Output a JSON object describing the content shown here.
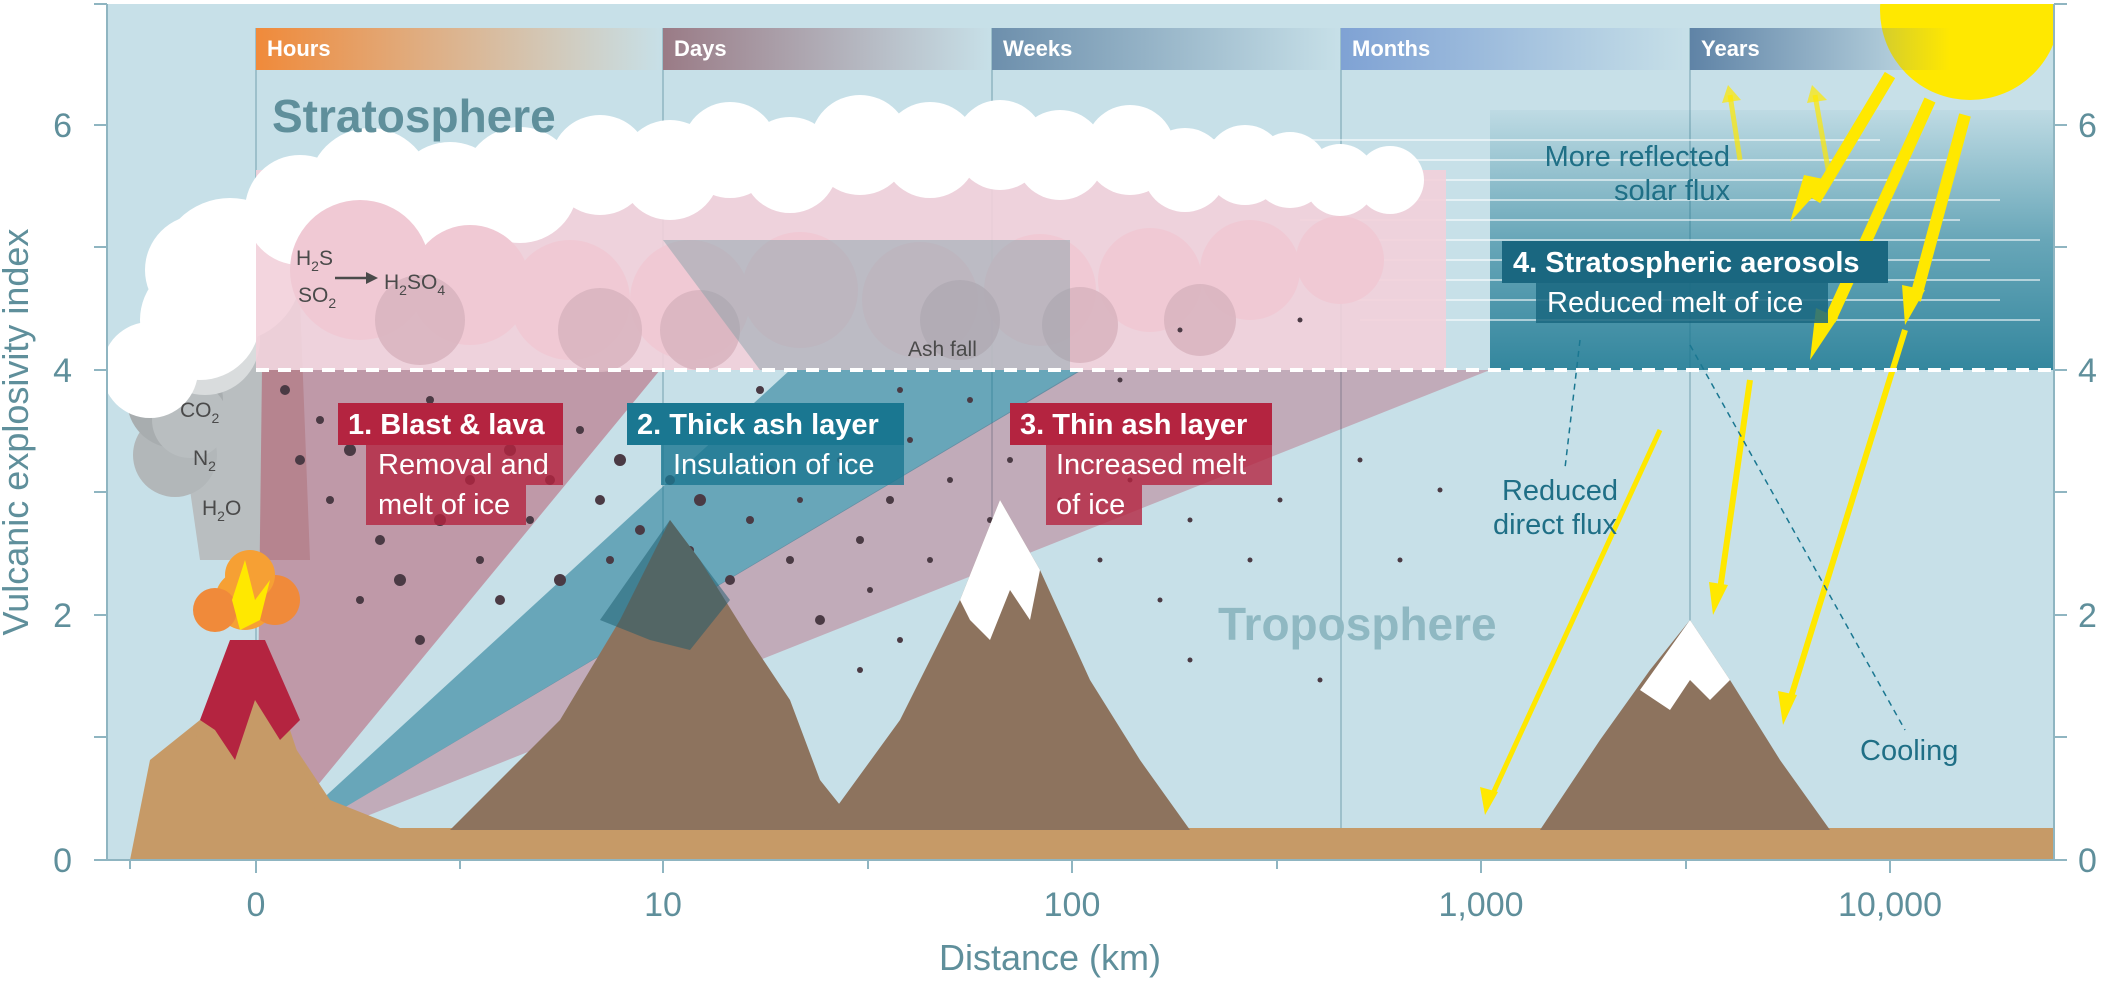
{
  "axes": {
    "ylabel": "Vulcanic explosivity index",
    "xlabel": "Distance (km)",
    "y_ticks_left": [
      "0",
      "2",
      "4",
      "6"
    ],
    "y_ticks_right": [
      "0",
      "2",
      "4",
      "6"
    ],
    "x_ticks": [
      "0",
      "10",
      "100",
      "1,000",
      "10,000"
    ]
  },
  "time_bands": [
    "Hours",
    "Days",
    "Weeks",
    "Months",
    "Years"
  ],
  "layers": {
    "stratosphere": "Stratosphere",
    "troposphere": "Troposphere"
  },
  "chemistry": {
    "h2s": "H",
    "h2s_sub": "2",
    "h2s_tail": "S",
    "so2": "SO",
    "so2_sub": "2",
    "h2so4": "H",
    "h2so4_sub1": "2",
    "h2so4_mid": "SO",
    "h2so4_sub2": "4",
    "co2": "CO",
    "co2_sub": "2",
    "n2": "N",
    "n2_sub": "2",
    "h2o": "H",
    "h2o_sub": "2",
    "h2o_tail": "O"
  },
  "labels": {
    "ash_fall": "Ash fall",
    "blast_title": "1. Blast & lava",
    "blast_line1": "Removal and",
    "blast_line2": "melt of ice",
    "thick_title": "2. Thick ash layer",
    "thick_line1": "Insulation of ice",
    "thin_title": "3. Thin ash layer",
    "thin_line1": "Increased melt",
    "thin_line2": "of ice",
    "aero_title": "4. Stratospheric aerosols",
    "aero_line1": "Reduced melt of ice",
    "reflected_line1": "More reflected",
    "reflected_line2": "solar flux",
    "direct_line1": "Reduced",
    "direct_line2": "direct flux",
    "cooling": "Cooling"
  },
  "colors": {
    "sky": "#c7e0e8",
    "ground": "#c69a67",
    "mountain": "#8d735e",
    "red": "#b42440",
    "teal": "#1a7791",
    "sun": "#ffe800"
  }
}
